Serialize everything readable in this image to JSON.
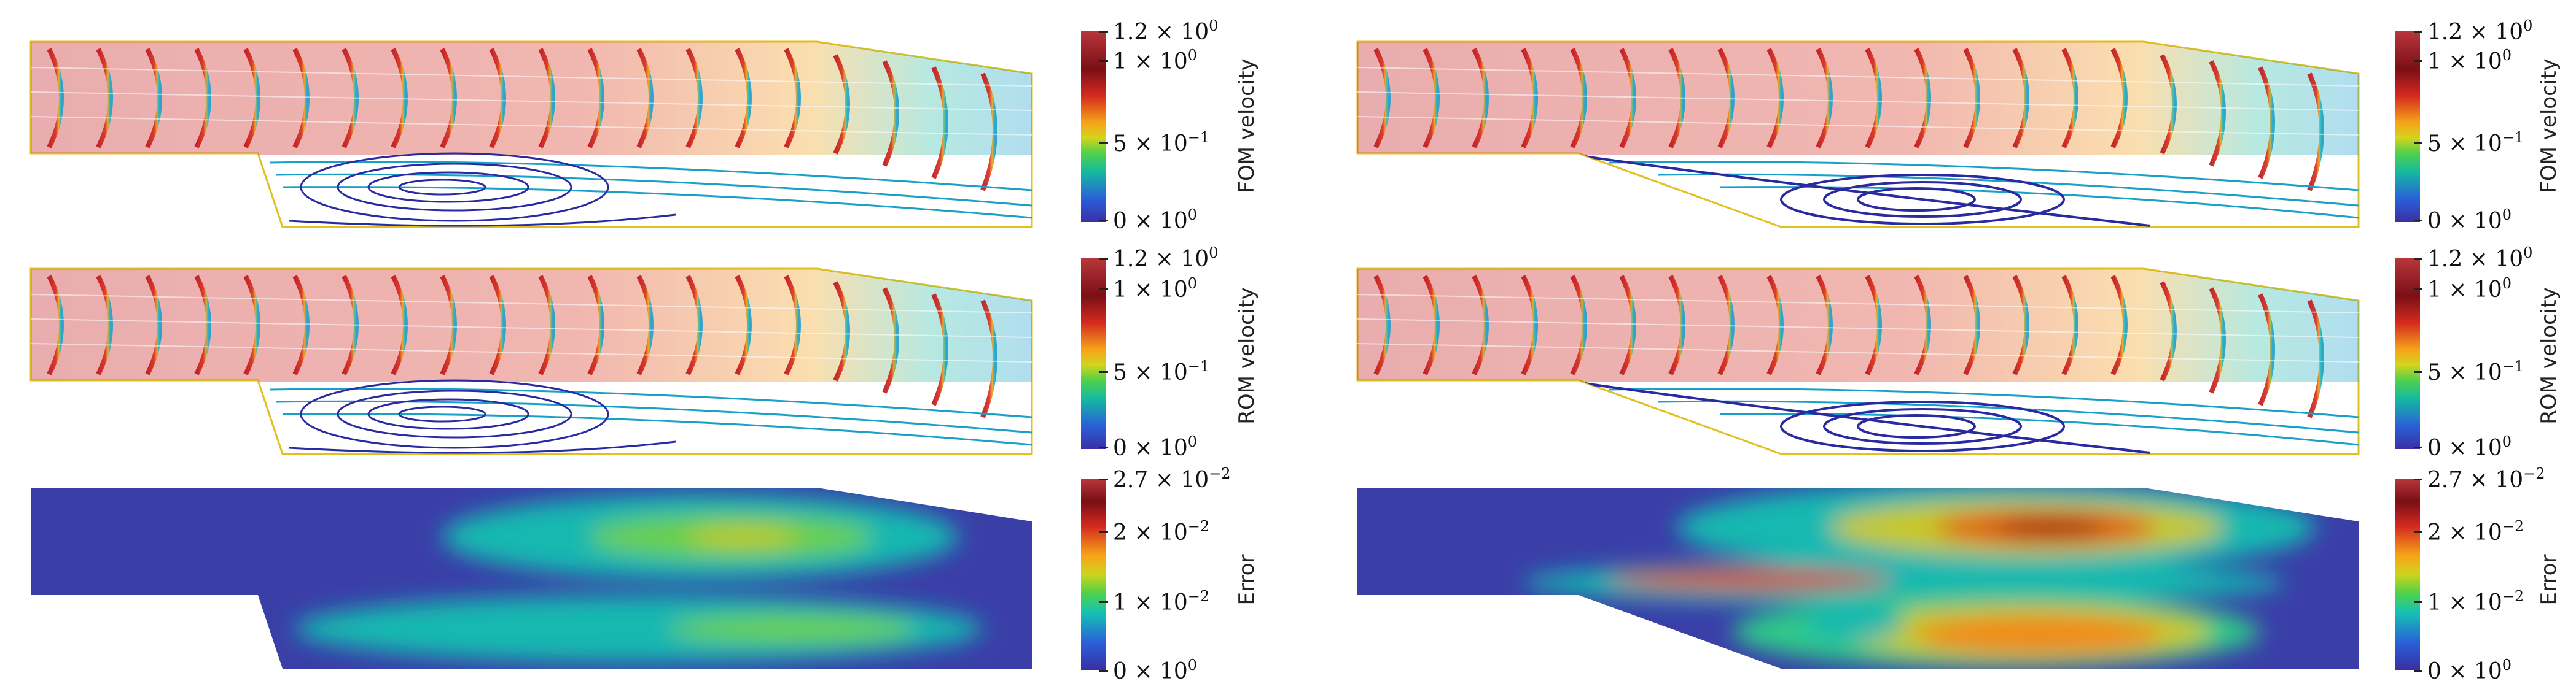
{
  "colorbars": {
    "fom_velocity": {
      "label": "FOM velocity",
      "ticks": [
        {
          "mant": "1.2 × 10",
          "exp": "0"
        },
        {
          "mant": "1 × 10",
          "exp": "0"
        },
        {
          "mant": "5 × 10",
          "exp": "−1"
        },
        {
          "mant": "0 × 10",
          "exp": "0"
        }
      ]
    },
    "rom_velocity": {
      "label": "ROM velocity",
      "ticks": [
        {
          "mant": "1.2 × 10",
          "exp": "0"
        },
        {
          "mant": "1 × 10",
          "exp": "0"
        },
        {
          "mant": "5 × 10",
          "exp": "−1"
        },
        {
          "mant": "0 × 10",
          "exp": "0"
        }
      ]
    },
    "error": {
      "label": "Error",
      "ticks": [
        {
          "mant": "2.7 × 10",
          "exp": "−2"
        },
        {
          "mant": "2 × 10",
          "exp": "−2"
        },
        {
          "mant": "1 × 10",
          "exp": "−2"
        },
        {
          "mant": "0 × 10",
          "exp": "0"
        }
      ]
    }
  },
  "colors": {
    "streamline_fast": "#c0141a",
    "streamline_slow": "#2a2aa0",
    "field_background": "#3a3fa8"
  }
}
